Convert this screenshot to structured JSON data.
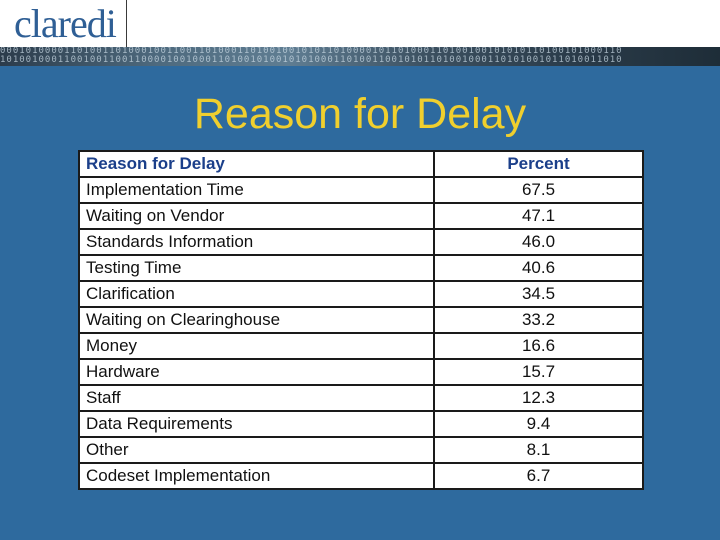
{
  "header": {
    "logo_text": "claredi"
  },
  "slide": {
    "title": "Reason for Delay"
  },
  "table": {
    "headers": [
      "Reason for Delay",
      "Percent"
    ],
    "rows": [
      [
        "Implementation Time",
        "67.5"
      ],
      [
        "Waiting on Vendor",
        "47.1"
      ],
      [
        "Standards Information",
        "46.0"
      ],
      [
        "Testing Time",
        "40.6"
      ],
      [
        "Clarification",
        "34.5"
      ],
      [
        "Waiting on Clearinghouse",
        "33.2"
      ],
      [
        "Money",
        "16.6"
      ],
      [
        "Hardware",
        "15.7"
      ],
      [
        "Staff",
        "12.3"
      ],
      [
        "Data Requirements",
        "9.4"
      ],
      [
        "Other",
        "8.1"
      ],
      [
        "Codeset Implementation",
        "6.7"
      ]
    ]
  },
  "colors": {
    "background": "#2e6a9e",
    "title": "#f0cf2e",
    "header_text": "#1b3f8a"
  }
}
